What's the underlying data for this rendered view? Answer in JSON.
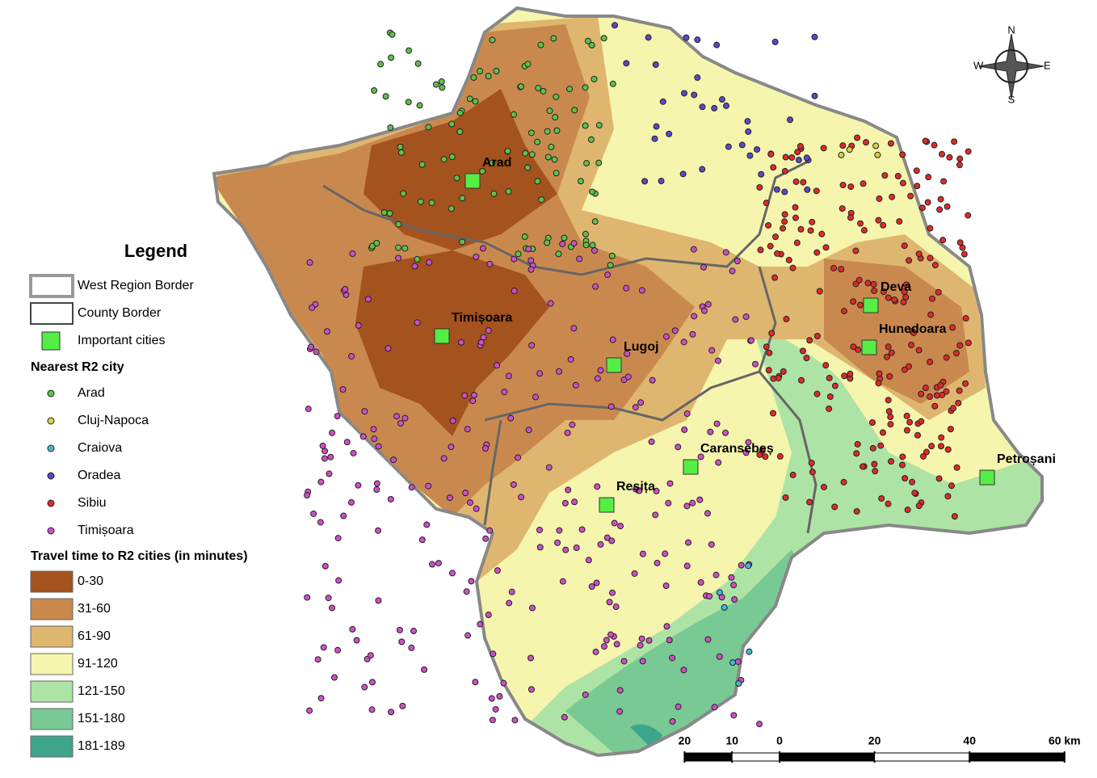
{
  "legend": {
    "title": "Legend",
    "borders": [
      {
        "label": "West Region Border"
      },
      {
        "label": "County Border"
      },
      {
        "label": "Important cities",
        "color": "#55ee44"
      }
    ],
    "nearest_title": "Nearest R2 city",
    "nearest": [
      {
        "label": "Arad",
        "color": "#5ec24a"
      },
      {
        "label": "Cluj-Napoca",
        "color": "#d6d04a"
      },
      {
        "label": "Craiova",
        "color": "#4ab4de"
      },
      {
        "label": "Oradea",
        "color": "#5a48c8"
      },
      {
        "label": "Sibiu",
        "color": "#e02a2a"
      },
      {
        "label": "Timișoara",
        "color": "#d04ec8"
      }
    ],
    "travel_title": "Travel time to R2 cities (in minutes)",
    "travel": [
      {
        "label": "0-30",
        "color": "#a4521e"
      },
      {
        "label": "31-60",
        "color": "#c9894e"
      },
      {
        "label": "61-90",
        "color": "#dfb66f"
      },
      {
        "label": "91-120",
        "color": "#f6f5ad"
      },
      {
        "label": "121-150",
        "color": "#aee3a6"
      },
      {
        "label": "151-180",
        "color": "#79c994"
      },
      {
        "label": "181-189",
        "color": "#3ea58c"
      }
    ]
  },
  "cities": [
    "Arad",
    "Timișoara",
    "Lugoj",
    "Deva",
    "Hunedoara",
    "Caransebeș",
    "Reșița",
    "Petroșani"
  ],
  "compass": {
    "n": "N",
    "e": "E",
    "s": "S",
    "w": "W"
  },
  "scale": [
    {
      "value": -20,
      "label": "20"
    },
    {
      "value": -10,
      "label": "10"
    },
    0,
    20,
    40,
    {
      "value": 60,
      "label": "60 km"
    }
  ]
}
